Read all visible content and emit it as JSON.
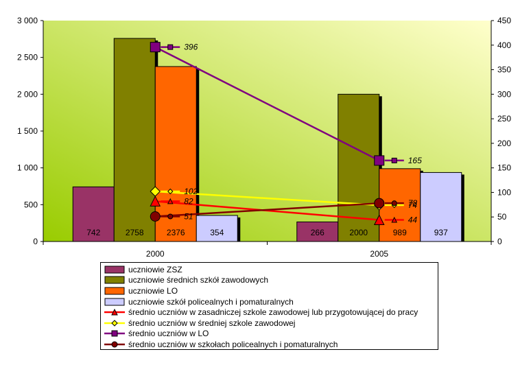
{
  "chart_data": {
    "type": "bar",
    "categories": [
      "2000",
      "2005"
    ],
    "y_left": {
      "min": 0,
      "max": 3000,
      "step": 500,
      "ticks": [
        "0",
        "500",
        "1 000",
        "1 500",
        "2 000",
        "2 500",
        "3 000"
      ]
    },
    "y_right": {
      "min": 0,
      "max": 450,
      "step": 50,
      "ticks": [
        "0",
        "50",
        "100",
        "150",
        "200",
        "250",
        "300",
        "350",
        "400",
        "450"
      ]
    },
    "bar_series": [
      {
        "name": "uczniowie ZSZ",
        "color": "#993366",
        "values": [
          742,
          266
        ],
        "labels": [
          "742",
          "266"
        ]
      },
      {
        "name": "uczniowie średnich szkół zawodowych",
        "color": "#808000",
        "values": [
          2758,
          2000
        ],
        "labels": [
          "2758",
          "2000"
        ]
      },
      {
        "name": "uczniowie LO",
        "color": "#ff6600",
        "values": [
          2376,
          989
        ],
        "labels": [
          "2376",
          "989"
        ]
      },
      {
        "name": "uczniowie szkół policealnych i pomaturalnych",
        "color": "#ccccff",
        "values": [
          354,
          937
        ],
        "labels": [
          "354",
          "937"
        ]
      }
    ],
    "line_series": [
      {
        "name": "średnio uczniów w zasadniczej szkole zawodowej lub przygotowującej do pracy",
        "color": "#ff0000",
        "marker": "triangle",
        "values": [
          82,
          44
        ],
        "labels": [
          "82",
          "44"
        ]
      },
      {
        "name": "średnio uczniów w średniej szkole zawodowej",
        "color": "#ffff00",
        "marker": "diamond",
        "values": [
          102,
          74
        ],
        "labels": [
          "102",
          "74"
        ]
      },
      {
        "name": "średnio uczniów w LO",
        "color": "#800080",
        "marker": "square",
        "values": [
          396,
          165
        ],
        "labels": [
          "396",
          "165"
        ]
      },
      {
        "name": "średnio uczniów w szkołach policealnych i pomaturalnych",
        "color": "#800000",
        "marker": "circle",
        "values": [
          51,
          78
        ],
        "labels": [
          "51",
          "78"
        ]
      }
    ],
    "background_gradient": [
      "#99cc00",
      "#ffffcc"
    ]
  }
}
